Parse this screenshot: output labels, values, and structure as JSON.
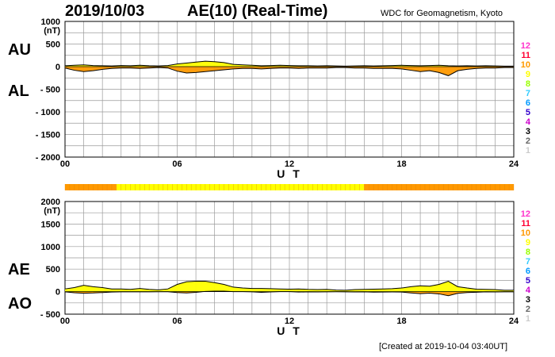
{
  "header": {
    "date": "2019/10/03",
    "title": "AE(10) (Real-Time)",
    "source": "WDC for Geomagnetism, Kyoto",
    "created": "[Created at 2019-10-04 03:40UT]"
  },
  "colors": {
    "grid": "#9a9a9a",
    "fill_primary": "#ffff00",
    "fill_secondary": "#ff9900",
    "line": "#000000"
  },
  "level_scale": {
    "labels": [
      "12",
      "11",
      "10",
      "9",
      "8",
      "7",
      "6",
      "5",
      "4",
      "3",
      "2",
      "1"
    ],
    "colors": [
      "#ff33cc",
      "#ff0033",
      "#ff9900",
      "#ffff00",
      "#99ff00",
      "#33ccff",
      "#0099ff",
      "#3300cc",
      "#cc00cc",
      "#000000",
      "#666666",
      "#cccccc"
    ]
  },
  "chart_data": [
    {
      "type": "area",
      "panel": "AU/AL",
      "series_labels": [
        "AU",
        "AL"
      ],
      "ylabel": "(nT)",
      "xlabel": "U T",
      "ylim": [
        -2000,
        1000
      ],
      "yticks": [
        1000,
        500,
        0,
        -500,
        -1000,
        -1500,
        -2000
      ],
      "ytick_labels": [
        "1000",
        "500",
        "0",
        "- 500",
        "- 1000",
        "- 1500",
        "- 2000"
      ],
      "xlim": [
        0,
        24
      ],
      "xticks": [
        0,
        6,
        12,
        18,
        24
      ],
      "xtick_labels": [
        "00",
        "06",
        "12",
        "18",
        "24"
      ],
      "grid": true,
      "x": [
        0,
        0.5,
        1,
        1.5,
        2,
        2.5,
        3,
        3.5,
        4,
        4.5,
        5,
        5.5,
        6,
        6.5,
        7,
        7.5,
        8,
        8.5,
        9,
        9.5,
        10,
        10.5,
        11,
        11.5,
        12,
        12.5,
        13,
        13.5,
        14,
        14.5,
        15,
        15.5,
        16,
        16.5,
        17,
        17.5,
        18,
        18.5,
        19,
        19.5,
        20,
        20.5,
        21,
        21.5,
        22,
        22.5,
        23,
        23.5,
        24
      ],
      "series": [
        {
          "values": [
            20,
            30,
            40,
            25,
            20,
            15,
            25,
            20,
            30,
            20,
            15,
            25,
            60,
            80,
            100,
            120,
            110,
            90,
            50,
            40,
            30,
            20,
            25,
            30,
            25,
            20,
            20,
            15,
            20,
            15,
            10,
            15,
            20,
            15,
            20,
            25,
            30,
            25,
            20,
            25,
            30,
            20,
            15,
            20,
            15,
            20,
            15,
            10,
            10
          ]
        },
        {
          "values": [
            -30,
            -80,
            -110,
            -90,
            -60,
            -40,
            -30,
            -30,
            -40,
            -30,
            -20,
            -30,
            -100,
            -140,
            -130,
            -110,
            -90,
            -70,
            -50,
            -40,
            -40,
            -50,
            -40,
            -30,
            -30,
            -40,
            -30,
            -30,
            -30,
            -20,
            -20,
            -30,
            -30,
            -40,
            -40,
            -40,
            -50,
            -80,
            -110,
            -90,
            -130,
            -200,
            -90,
            -60,
            -40,
            -30,
            -30,
            -20,
            -20
          ]
        }
      ]
    },
    {
      "type": "area",
      "panel": "AE/AO",
      "series_labels": [
        "AE",
        "AO"
      ],
      "ylabel": "(nT)",
      "xlabel": "U T",
      "ylim": [
        -500,
        2000
      ],
      "yticks": [
        2000,
        1500,
        1000,
        500,
        0,
        -500
      ],
      "ytick_labels": [
        "2000",
        "1500",
        "1000",
        "500",
        "0",
        "- 500"
      ],
      "xlim": [
        0,
        24
      ],
      "xticks": [
        0,
        6,
        12,
        18,
        24
      ],
      "xtick_labels": [
        "00",
        "06",
        "12",
        "18",
        "24"
      ],
      "grid": true,
      "x": [
        0,
        0.5,
        1,
        1.5,
        2,
        2.5,
        3,
        3.5,
        4,
        4.5,
        5,
        5.5,
        6,
        6.5,
        7,
        7.5,
        8,
        8.5,
        9,
        9.5,
        10,
        10.5,
        11,
        11.5,
        12,
        12.5,
        13,
        13.5,
        14,
        14.5,
        15,
        15.5,
        16,
        16.5,
        17,
        17.5,
        18,
        18.5,
        19,
        19.5,
        20,
        20.5,
        21,
        21.5,
        22,
        22.5,
        23,
        23.5,
        24
      ],
      "series": [
        {
          "values": [
            60,
            90,
            140,
            110,
            90,
            60,
            60,
            50,
            70,
            50,
            40,
            60,
            160,
            220,
            230,
            230,
            200,
            160,
            100,
            80,
            70,
            70,
            65,
            60,
            55,
            60,
            50,
            45,
            50,
            35,
            30,
            45,
            50,
            55,
            60,
            65,
            80,
            110,
            130,
            120,
            160,
            230,
            110,
            80,
            55,
            50,
            45,
            30,
            30
          ]
        },
        {
          "values": [
            -5,
            -25,
            -35,
            -30,
            -20,
            -10,
            -5,
            -5,
            -5,
            -5,
            -3,
            -3,
            -20,
            -30,
            -15,
            5,
            10,
            10,
            0,
            0,
            -5,
            -15,
            -8,
            0,
            0,
            -10,
            -5,
            -8,
            -5,
            -3,
            -5,
            -8,
            -5,
            -12,
            -10,
            -8,
            -10,
            -28,
            -45,
            -33,
            -50,
            -90,
            -38,
            -20,
            -13,
            -5,
            -8,
            -5,
            -5
          ]
        }
      ]
    }
  ],
  "activity_bar": [
    {
      "from": 0,
      "to": 2.75,
      "color": "#ff9900"
    },
    {
      "from": 2.75,
      "to": 16.0,
      "color": "#ffff00"
    },
    {
      "from": 16.0,
      "to": 24,
      "color": "#ff9900"
    }
  ]
}
